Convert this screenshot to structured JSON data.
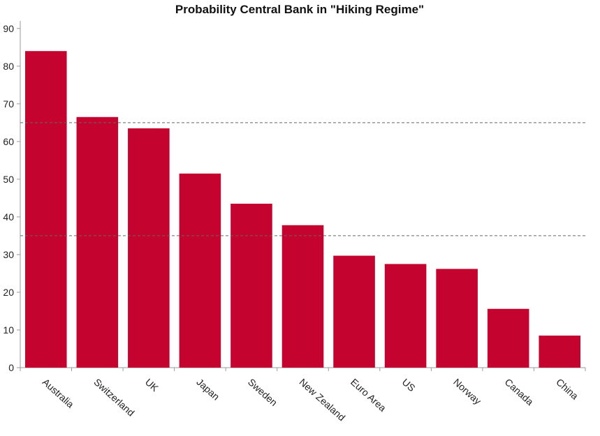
{
  "chart_data": {
    "type": "bar",
    "title": "Probability Central Bank in \"Hiking Regime\"",
    "xlabel": "",
    "ylabel": "",
    "categories": [
      "Australia",
      "Switzerland",
      "UK",
      "Japan",
      "Sweden",
      "New Zealand",
      "Euro Area",
      "US",
      "Norway",
      "Canada",
      "China"
    ],
    "values": [
      84,
      66.5,
      63.5,
      51.5,
      43.5,
      37.8,
      29.7,
      27.5,
      26.2,
      15.6,
      8.5
    ],
    "ylim": [
      0,
      92
    ],
    "yticks": [
      0,
      10,
      20,
      30,
      40,
      50,
      60,
      70,
      80,
      90
    ],
    "reference_lines": [
      65,
      35
    ],
    "bar_color": "#c4032f",
    "grid": false,
    "legend": "none"
  }
}
